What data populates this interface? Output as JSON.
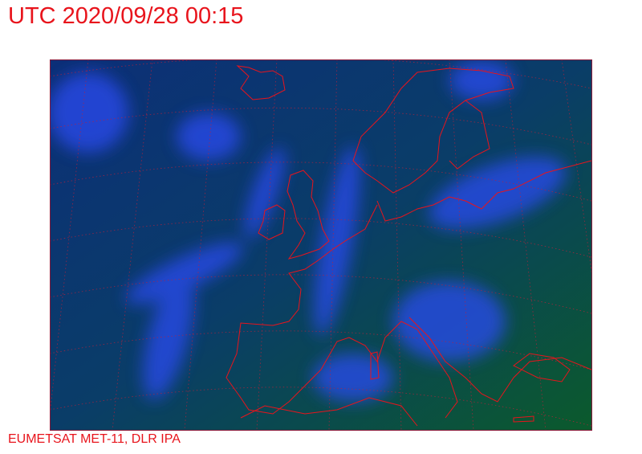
{
  "header": {
    "title": "UTC 2020/09/28 00:15"
  },
  "footer": {
    "credit": "EUMETSAT MET-11, DLR IPA"
  },
  "map": {
    "imagery": "satellite-infrared-composite",
    "region": "Europe / North Atlantic",
    "colors": {
      "coastline": "#e8141c",
      "graticule": "#c0203a",
      "frame": "#8a1a3a",
      "ocean": "#0a3a6a",
      "cloud": "#2a4cf0",
      "land_warm": "#0a5a2a"
    }
  }
}
